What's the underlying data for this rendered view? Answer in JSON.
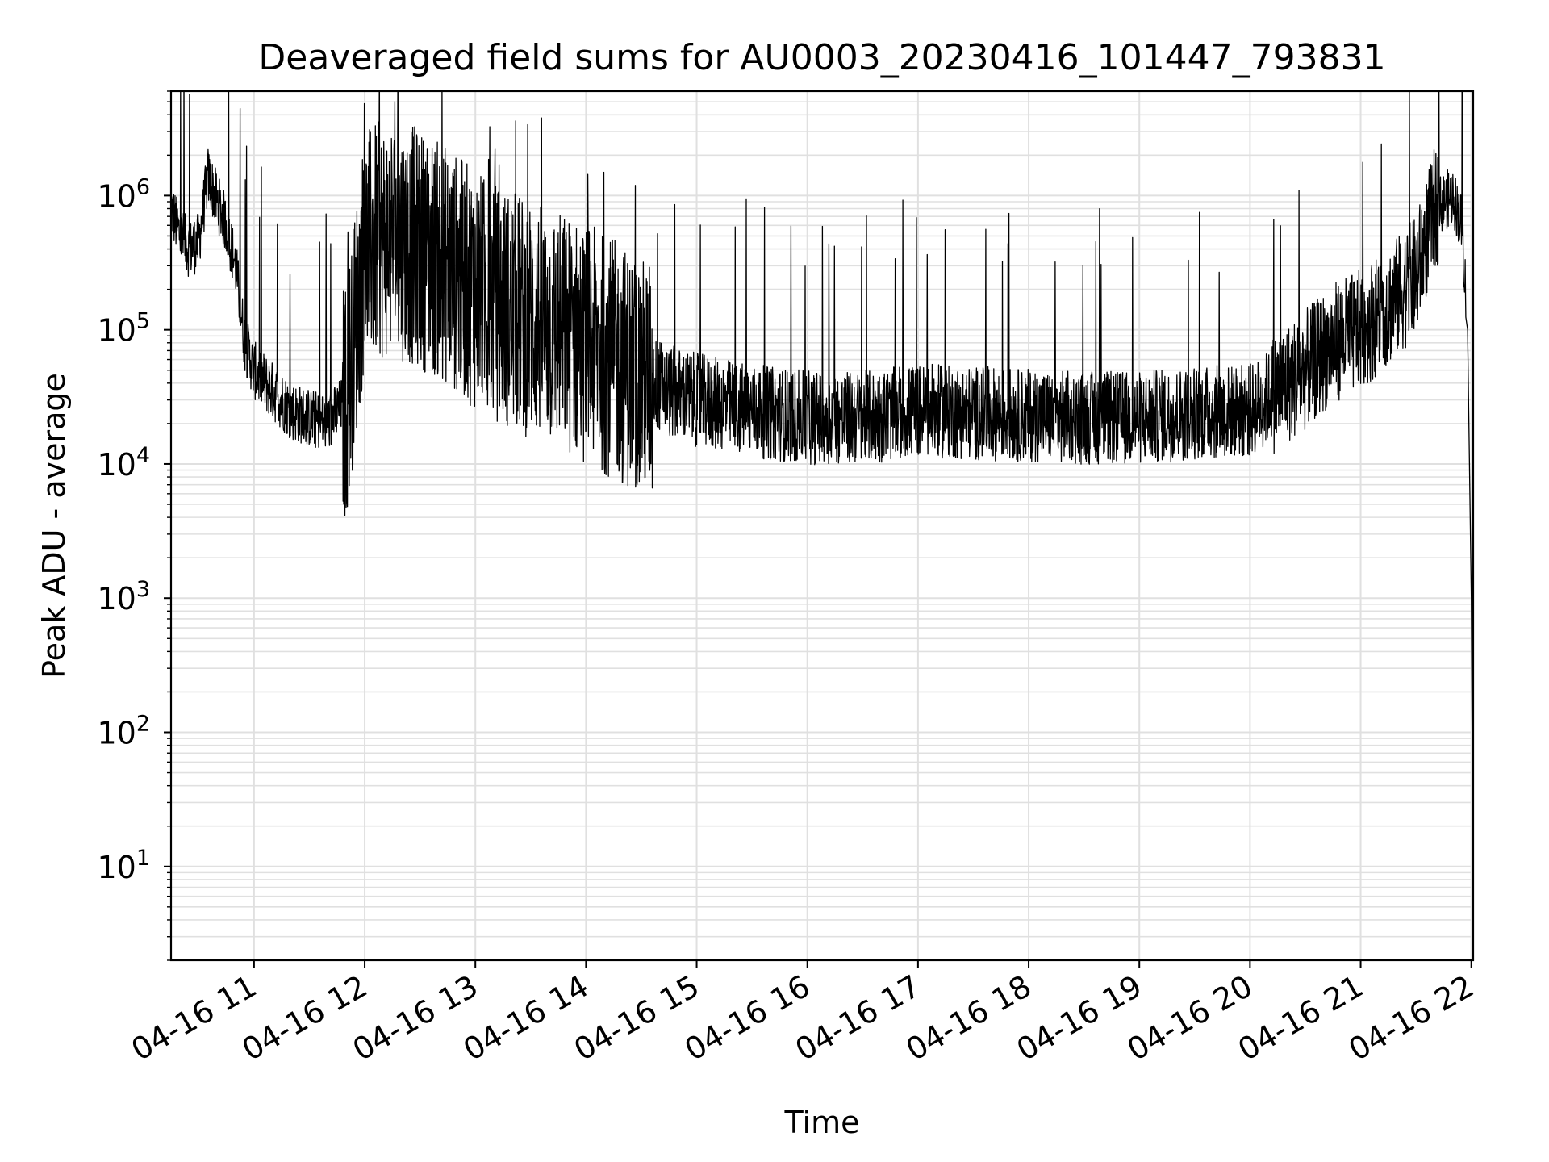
{
  "chart_data": {
    "type": "line",
    "title": "Deaveraged field sums for AU0003_20230416_101447_793831",
    "xlabel": "Time",
    "ylabel": "Peak ADU - average",
    "xscale": "time",
    "yscale": "log",
    "xlim": [
      "2023-04-16 10:15",
      "2023-04-16 22:01"
    ],
    "ylim": [
      2,
      6000000
    ],
    "x_ticks": [
      {
        "value": "2023-04-16 11:00",
        "label": "04-16 11"
      },
      {
        "value": "2023-04-16 12:00",
        "label": "04-16 12"
      },
      {
        "value": "2023-04-16 13:00",
        "label": "04-16 13"
      },
      {
        "value": "2023-04-16 14:00",
        "label": "04-16 14"
      },
      {
        "value": "2023-04-16 15:00",
        "label": "04-16 15"
      },
      {
        "value": "2023-04-16 16:00",
        "label": "04-16 16"
      },
      {
        "value": "2023-04-16 17:00",
        "label": "04-16 17"
      },
      {
        "value": "2023-04-16 18:00",
        "label": "04-16 18"
      },
      {
        "value": "2023-04-16 19:00",
        "label": "04-16 19"
      },
      {
        "value": "2023-04-16 20:00",
        "label": "04-16 20"
      },
      {
        "value": "2023-04-16 21:00",
        "label": "04-16 21"
      },
      {
        "value": "2023-04-16 22:00",
        "label": "04-16 22"
      }
    ],
    "y_ticks": [
      {
        "value": 10,
        "base": "10",
        "exp": "1"
      },
      {
        "value": 100,
        "base": "10",
        "exp": "2"
      },
      {
        "value": 1000,
        "base": "10",
        "exp": "3"
      },
      {
        "value": 10000,
        "base": "10",
        "exp": "4"
      },
      {
        "value": 100000,
        "base": "10",
        "exp": "5"
      },
      {
        "value": 1000000,
        "base": "10",
        "exp": "6"
      }
    ],
    "grid": true,
    "line_color": "#000000",
    "grid_color": "#e0e0e0",
    "series": [
      {
        "x": [
          "2023-04-16 10:15",
          "2023-04-16 10:20",
          "2023-04-16 10:25",
          "2023-04-16 10:30",
          "2023-04-16 10:35",
          "2023-04-16 10:40",
          "2023-04-16 10:45",
          "2023-04-16 10:50",
          "2023-04-16 10:55",
          "2023-04-16 11:00",
          "2023-04-16 11:10",
          "2023-04-16 11:20",
          "2023-04-16 11:30",
          "2023-04-16 11:40",
          "2023-04-16 11:50",
          "2023-04-16 12:00",
          "2023-04-16 12:15",
          "2023-04-16 12:30",
          "2023-04-16 12:45",
          "2023-04-16 13:00",
          "2023-04-16 13:15",
          "2023-04-16 13:30",
          "2023-04-16 13:45",
          "2023-04-16 14:00",
          "2023-04-16 14:15",
          "2023-04-16 14:30",
          "2023-04-16 14:45",
          "2023-04-16 15:00",
          "2023-04-16 15:30",
          "2023-04-16 16:00",
          "2023-04-16 16:30",
          "2023-04-16 17:00",
          "2023-04-16 17:30",
          "2023-04-16 18:00",
          "2023-04-16 18:30",
          "2023-04-16 19:00",
          "2023-04-16 19:30",
          "2023-04-16 20:00",
          "2023-04-16 20:15",
          "2023-04-16 20:30",
          "2023-04-16 20:45",
          "2023-04-16 21:00",
          "2023-04-16 21:15",
          "2023-04-16 21:30",
          "2023-04-16 21:40",
          "2023-04-16 21:45",
          "2023-04-16 21:50",
          "2023-04-16 21:55",
          "2023-04-16 21:58",
          "2023-04-16 22:00",
          "2023-04-16 22:01"
        ],
        "y": [
          800000,
          500000,
          400000,
          450000,
          1400000,
          900000,
          600000,
          300000,
          80000,
          50000,
          35000,
          25000,
          22000,
          20000,
          30000,
          400000,
          500000,
          400000,
          300000,
          200000,
          150000,
          120000,
          100000,
          80000,
          60000,
          45000,
          35000,
          30000,
          25000,
          22000,
          22000,
          25000,
          24000,
          23000,
          22000,
          22000,
          24000,
          25000,
          35000,
          50000,
          80000,
          100000,
          150000,
          250000,
          800000,
          900000,
          1000000,
          600000,
          100000,
          1000,
          4
        ]
      }
    ]
  }
}
